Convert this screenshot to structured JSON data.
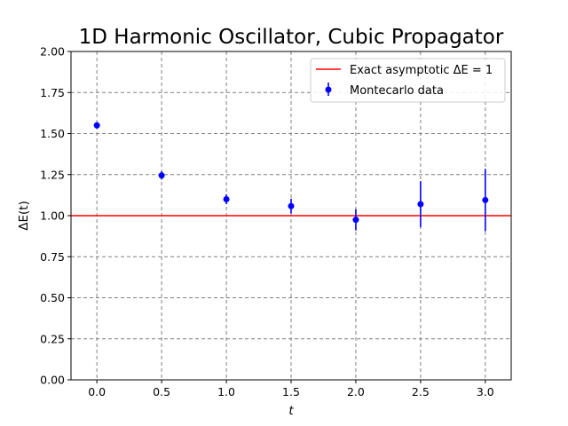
{
  "chart_data": {
    "type": "scatter",
    "title": "1D Harmonic Oscillator, Cubic Propagator",
    "xlabel": "t",
    "ylabel": "ΔE(t)",
    "xlim": [
      -0.2,
      3.2
    ],
    "ylim": [
      0.0,
      2.0
    ],
    "xticks": [
      0.0,
      0.5,
      1.0,
      1.5,
      2.0,
      2.5,
      3.0
    ],
    "yticks": [
      0.0,
      0.25,
      0.5,
      0.75,
      1.0,
      1.25,
      1.5,
      1.75,
      2.0
    ],
    "xtick_labels": [
      "0.0",
      "0.5",
      "1.0",
      "1.5",
      "2.0",
      "2.5",
      "3.0"
    ],
    "ytick_labels": [
      "0.00",
      "0.25",
      "0.50",
      "0.75",
      "1.00",
      "1.25",
      "1.50",
      "1.75",
      "2.00"
    ],
    "grid": true,
    "legend_position": "top-right",
    "series": [
      {
        "name": "Exact asymptotic ΔE = 1",
        "kind": "hline",
        "y": 1.0,
        "color": "#ff0000"
      },
      {
        "name": "Montecarlo data",
        "kind": "errorbar",
        "color": "#0000ff",
        "x": [
          0.0,
          0.5,
          1.0,
          1.5,
          2.0,
          2.5,
          3.0
        ],
        "y": [
          1.55,
          1.245,
          1.1,
          1.058,
          0.975,
          1.07,
          1.095
        ],
        "yerr": [
          0.02,
          0.025,
          0.03,
          0.045,
          0.065,
          0.14,
          0.19
        ]
      }
    ]
  }
}
